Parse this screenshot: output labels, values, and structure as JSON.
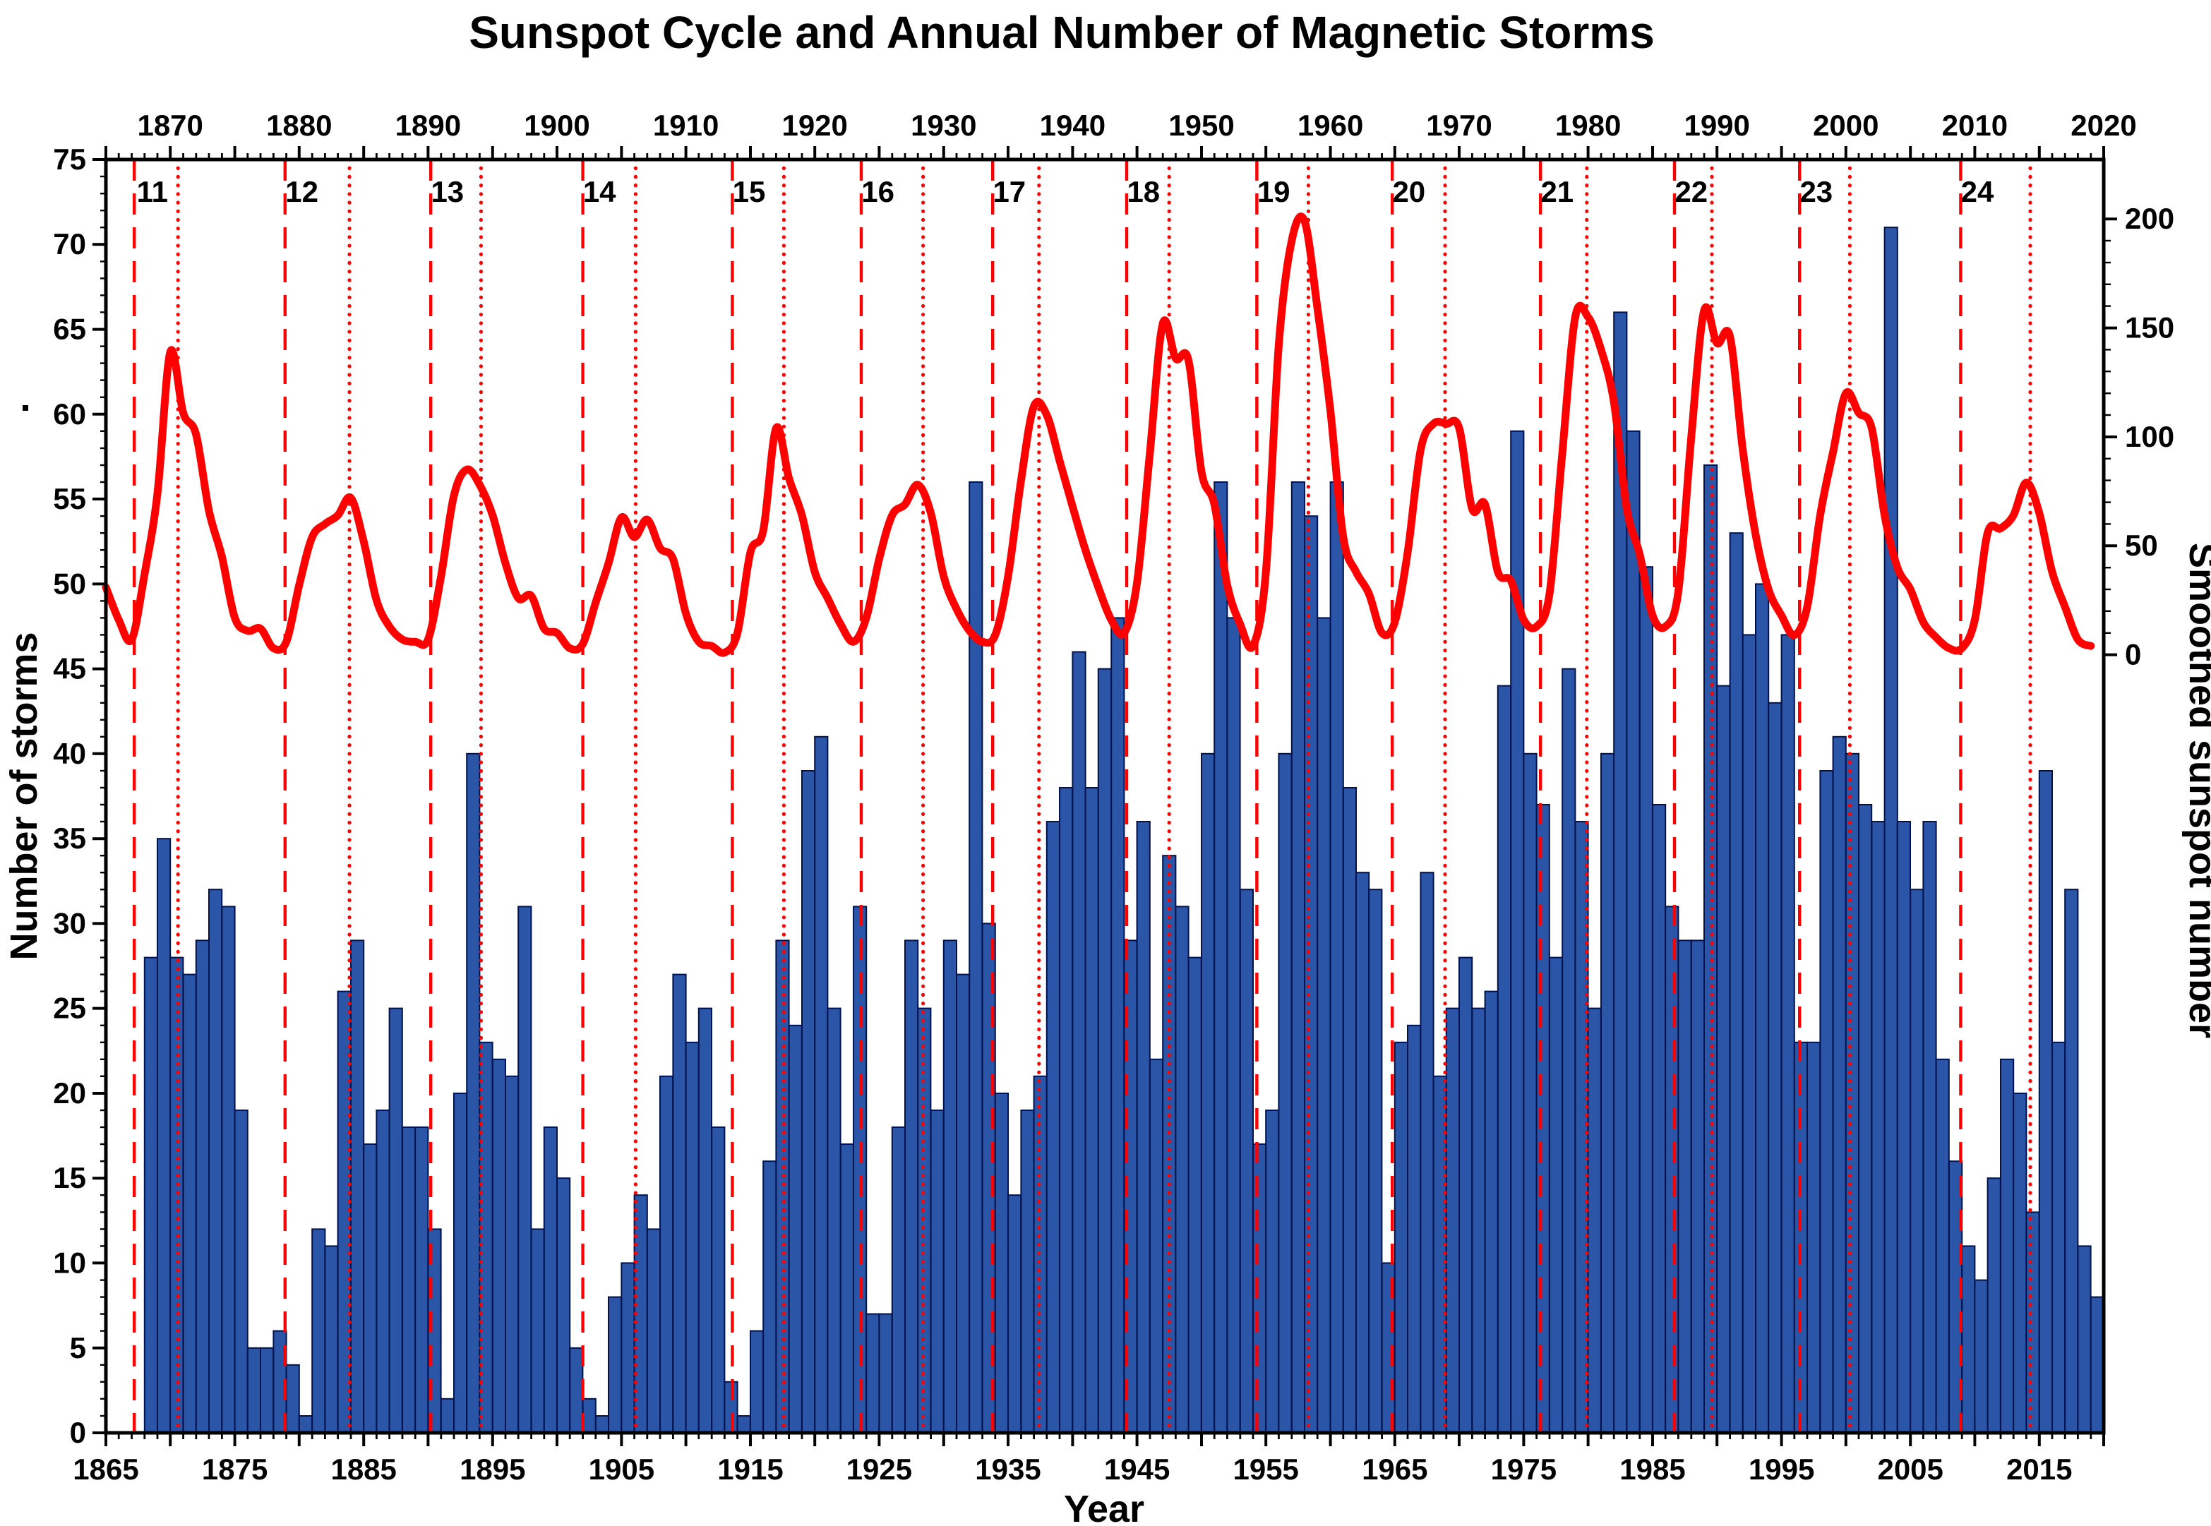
{
  "chart_data": {
    "type": "bar+line",
    "title": "Sunspot Cycle and Annual Number of Magnetic Storms",
    "xlabel": "Year",
    "ylabel_left": "Number of storms",
    "ylabel_right": "Smoothed sunspot number",
    "x_range": [
      1865,
      2020
    ],
    "y_left_range": [
      0,
      75
    ],
    "y_right_range": [
      0,
      200
    ],
    "right_axis_left_equiv": [
      45.83,
      71.5
    ],
    "x_ticks_top": [
      1870,
      1880,
      1890,
      1900,
      1910,
      1920,
      1930,
      1940,
      1950,
      1960,
      1970,
      1980,
      1990,
      2000,
      2010,
      2020
    ],
    "x_ticks_bottom": [
      1865,
      1875,
      1885,
      1895,
      1905,
      1915,
      1925,
      1935,
      1945,
      1955,
      1965,
      1975,
      1985,
      1995,
      2005,
      2015
    ],
    "y_left_ticks": [
      0,
      5,
      10,
      15,
      20,
      25,
      30,
      35,
      40,
      45,
      50,
      55,
      60,
      65,
      70,
      75
    ],
    "y_right_ticks": [
      0,
      50,
      100,
      150,
      200
    ],
    "bars": {
      "name": "Annual number of magnetic storms",
      "start_year": 1868,
      "values": [
        28,
        35,
        28,
        27,
        29,
        32,
        31,
        19,
        5,
        5,
        6,
        4,
        1,
        12,
        11,
        26,
        29,
        17,
        19,
        25,
        18,
        18,
        12,
        2,
        20,
        40,
        23,
        22,
        21,
        31,
        12,
        18,
        15,
        5,
        2,
        1,
        8,
        10,
        14,
        12,
        21,
        27,
        23,
        25,
        18,
        3,
        1,
        6,
        16,
        29,
        24,
        39,
        41,
        25,
        17,
        31,
        7,
        7,
        18,
        29,
        25,
        19,
        29,
        27,
        56,
        30,
        20,
        14,
        19,
        21,
        36,
        38,
        46,
        38,
        45,
        48,
        29,
        36,
        22,
        34,
        31,
        28,
        40,
        56,
        48,
        32,
        17,
        19,
        40,
        56,
        54,
        48,
        56,
        38,
        33,
        32,
        10,
        23,
        24,
        33,
        21,
        25,
        28,
        25,
        26,
        44,
        59,
        40,
        37,
        28,
        45,
        36,
        25,
        40,
        66,
        59,
        51,
        37,
        31,
        29,
        29,
        57,
        44,
        53,
        47,
        50,
        43,
        47,
        23,
        23,
        39,
        41,
        40,
        37,
        36,
        71,
        36,
        32,
        36,
        22,
        16,
        11,
        9,
        15,
        22,
        20,
        13,
        39,
        23,
        32,
        11,
        8
      ]
    },
    "sunspot_line": {
      "name": "Smoothed sunspot number",
      "start_year": 1865,
      "values": [
        31,
        16,
        7,
        37,
        74,
        139,
        111,
        101,
        66,
        45,
        17,
        11,
        12,
        3,
        6,
        32,
        54,
        60,
        64,
        72,
        52,
        25,
        13,
        7,
        6,
        7,
        36,
        73,
        85,
        78,
        64,
        42,
        26,
        27,
        12,
        10,
        3,
        5,
        24,
        42,
        63,
        54,
        62,
        49,
        44,
        19,
        6,
        4,
        1,
        10,
        47,
        57,
        104,
        81,
        64,
        38,
        26,
        14,
        6,
        17,
        44,
        64,
        69,
        78,
        65,
        36,
        21,
        11,
        6,
        9,
        36,
        80,
        114,
        110,
        89,
        68,
        48,
        31,
        16,
        10,
        33,
        93,
        152,
        136,
        135,
        84,
        69,
        32,
        14,
        4,
        38,
        142,
        190,
        199,
        159,
        112,
        54,
        38,
        28,
        10,
        15,
        47,
        94,
        106,
        106,
        104,
        67,
        69,
        38,
        34,
        16,
        13,
        28,
        93,
        155,
        155,
        140,
        116,
        67,
        46,
        18,
        13,
        29,
        100,
        158,
        143,
        146,
        94,
        55,
        30,
        18,
        9,
        22,
        64,
        93,
        120,
        111,
        104,
        64,
        40,
        30,
        15,
        8,
        3,
        3,
        16,
        56,
        58,
        64,
        79,
        65,
        38,
        22,
        7,
        4
      ]
    },
    "cycles": [
      {
        "number": "11",
        "start": 1867.2,
        "max": 1870.6,
        "label_year": 1868.6
      },
      {
        "number": "12",
        "start": 1878.9,
        "max": 1883.9,
        "label_year": 1880.2
      },
      {
        "number": "13",
        "start": 1890.2,
        "max": 1894.1,
        "label_year": 1891.5
      },
      {
        "number": "14",
        "start": 1902.0,
        "max": 1906.1,
        "label_year": 1903.3
      },
      {
        "number": "15",
        "start": 1913.6,
        "max": 1917.6,
        "label_year": 1914.9
      },
      {
        "number": "16",
        "start": 1923.6,
        "max": 1928.4,
        "label_year": 1924.9
      },
      {
        "number": "17",
        "start": 1933.8,
        "max": 1937.4,
        "label_year": 1935.1
      },
      {
        "number": "18",
        "start": 1944.2,
        "max": 1947.5,
        "label_year": 1945.5
      },
      {
        "number": "19",
        "start": 1954.3,
        "max": 1958.3,
        "label_year": 1955.6
      },
      {
        "number": "20",
        "start": 1964.8,
        "max": 1968.9,
        "label_year": 1966.1
      },
      {
        "number": "21",
        "start": 1976.3,
        "max": 1979.9,
        "label_year": 1977.6
      },
      {
        "number": "22",
        "start": 1986.7,
        "max": 1989.6,
        "label_year": 1988.0
      },
      {
        "number": "23",
        "start": 1996.4,
        "max": 2000.3,
        "label_year": 1997.7
      },
      {
        "number": "24",
        "start": 2008.9,
        "max": 2014.3,
        "label_year": 2010.2
      }
    ],
    "grid": "off",
    "legend": "none",
    "colors": {
      "bar_fill": "#2b55a7",
      "bar_edge": "#00124d",
      "sunspot_line": "#ff0000",
      "cycle_marks": "#ff0000",
      "axis": "#000000"
    }
  }
}
